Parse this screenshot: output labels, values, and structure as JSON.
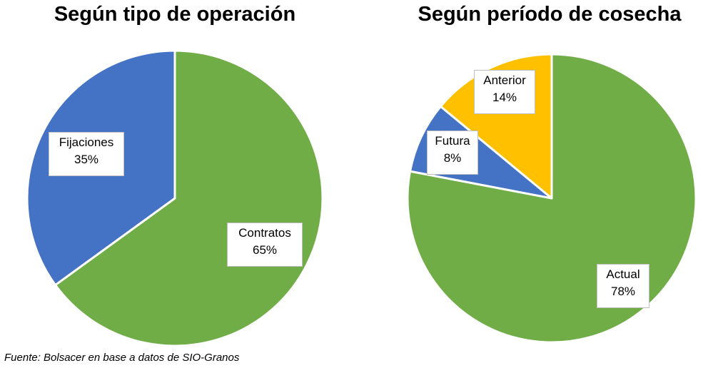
{
  "chart_data": [
    {
      "type": "pie",
      "title": "Según tipo de operación",
      "slices": [
        {
          "label": "Contratos",
          "value": 65,
          "display": "65%",
          "color": "#70AD47"
        },
        {
          "label": "Fijaciones",
          "value": 35,
          "display": "35%",
          "color": "#4472C4"
        }
      ]
    },
    {
      "type": "pie",
      "title": "Según período de cosecha",
      "slices": [
        {
          "label": "Actual",
          "value": 78,
          "display": "78%",
          "color": "#70AD47"
        },
        {
          "label": "Futura",
          "value": 8,
          "display": "8%",
          "color": "#4472C4"
        },
        {
          "label": "Anterior",
          "value": 14,
          "display": "14%",
          "color": "#FFC000"
        }
      ]
    }
  ],
  "footer": {
    "source": "Fuente: Bolsacer en base a datos de SIO-Granos"
  }
}
